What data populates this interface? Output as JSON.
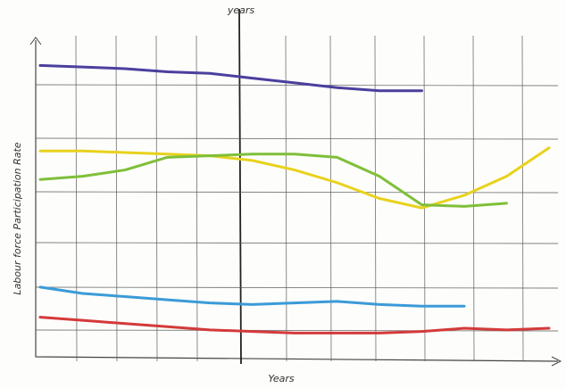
{
  "chart_data": {
    "type": "line",
    "top_label": "years",
    "xlabel": "Years",
    "ylabel": "Labour force Participation Rate",
    "x": [
      0,
      1,
      2,
      3,
      4,
      5,
      6,
      7,
      8,
      9,
      10,
      11,
      12
    ],
    "xlim": [
      0,
      12
    ],
    "ylim": [
      0,
      100
    ],
    "grid": true,
    "series": [
      {
        "color": "#4b3f9e",
        "values": [
          92,
          91.5,
          91,
          90,
          89.5,
          88,
          86.5,
          85,
          84,
          84,
          null,
          null,
          null
        ]
      },
      {
        "color": "#e8d21c",
        "values": [
          65,
          65,
          64.5,
          64,
          63.5,
          62,
          59,
          55,
          50,
          47,
          51,
          57,
          66
        ]
      },
      {
        "color": "#7fbf3a",
        "values": [
          56,
          57,
          59,
          63,
          63.5,
          64,
          64,
          63,
          57,
          48,
          47.5,
          48.5,
          null
        ]
      },
      {
        "color": "#3a9bd8",
        "values": [
          22,
          20,
          19,
          18,
          17,
          16.5,
          17,
          17.5,
          16.5,
          16,
          16,
          null,
          null
        ]
      },
      {
        "color": "#d43a3a",
        "values": [
          12.5,
          11.5,
          10.5,
          9.5,
          8.5,
          8,
          7.5,
          7.5,
          7.5,
          8,
          9,
          8.5,
          9
        ]
      }
    ]
  }
}
